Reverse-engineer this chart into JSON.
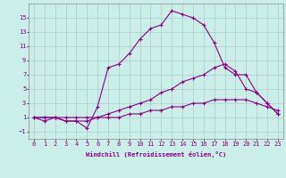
{
  "xlabel": "Windchill (Refroidissement éolien,°C)",
  "ylabel": "",
  "bg_color": "#cceee8",
  "line_color": "#880088",
  "grid_color": "#aacccc",
  "xlim": [
    -0.5,
    23.5
  ],
  "ylim": [
    -2.0,
    17.0
  ],
  "yticks": [
    -1,
    1,
    3,
    5,
    7,
    9,
    11,
    13,
    15
  ],
  "xticks": [
    0,
    1,
    2,
    3,
    4,
    5,
    6,
    7,
    8,
    9,
    10,
    11,
    12,
    13,
    14,
    15,
    16,
    17,
    18,
    19,
    20,
    21,
    22,
    23
  ],
  "line1_x": [
    0,
    1,
    2,
    3,
    4,
    5,
    6,
    7,
    8,
    9,
    10,
    11,
    12,
    13,
    14,
    15,
    16,
    17,
    18,
    19,
    20,
    21,
    22,
    23
  ],
  "line1_y": [
    1.0,
    0.5,
    1.0,
    0.5,
    0.5,
    -0.5,
    2.5,
    8.0,
    8.5,
    10.0,
    12.0,
    13.5,
    14.0,
    16.0,
    15.5,
    15.0,
    14.0,
    11.5,
    8.0,
    7.0,
    7.0,
    4.5,
    3.0,
    1.5
  ],
  "line2_x": [
    0,
    1,
    2,
    3,
    4,
    5,
    6,
    7,
    8,
    9,
    10,
    11,
    12,
    13,
    14,
    15,
    16,
    17,
    18,
    19,
    20,
    21,
    22,
    23
  ],
  "line2_y": [
    1.0,
    1.0,
    1.0,
    0.5,
    0.5,
    0.5,
    1.0,
    1.5,
    2.0,
    2.5,
    3.0,
    3.5,
    4.5,
    5.0,
    6.0,
    6.5,
    7.0,
    8.0,
    8.5,
    7.5,
    5.0,
    4.5,
    3.0,
    1.5
  ],
  "line3_x": [
    0,
    1,
    2,
    3,
    4,
    5,
    6,
    7,
    8,
    9,
    10,
    11,
    12,
    13,
    14,
    15,
    16,
    17,
    18,
    19,
    20,
    21,
    22,
    23
  ],
  "line3_y": [
    1.0,
    1.0,
    1.0,
    1.0,
    1.0,
    1.0,
    1.0,
    1.0,
    1.0,
    1.5,
    1.5,
    2.0,
    2.0,
    2.5,
    2.5,
    3.0,
    3.0,
    3.5,
    3.5,
    3.5,
    3.5,
    3.0,
    2.5,
    2.0
  ]
}
